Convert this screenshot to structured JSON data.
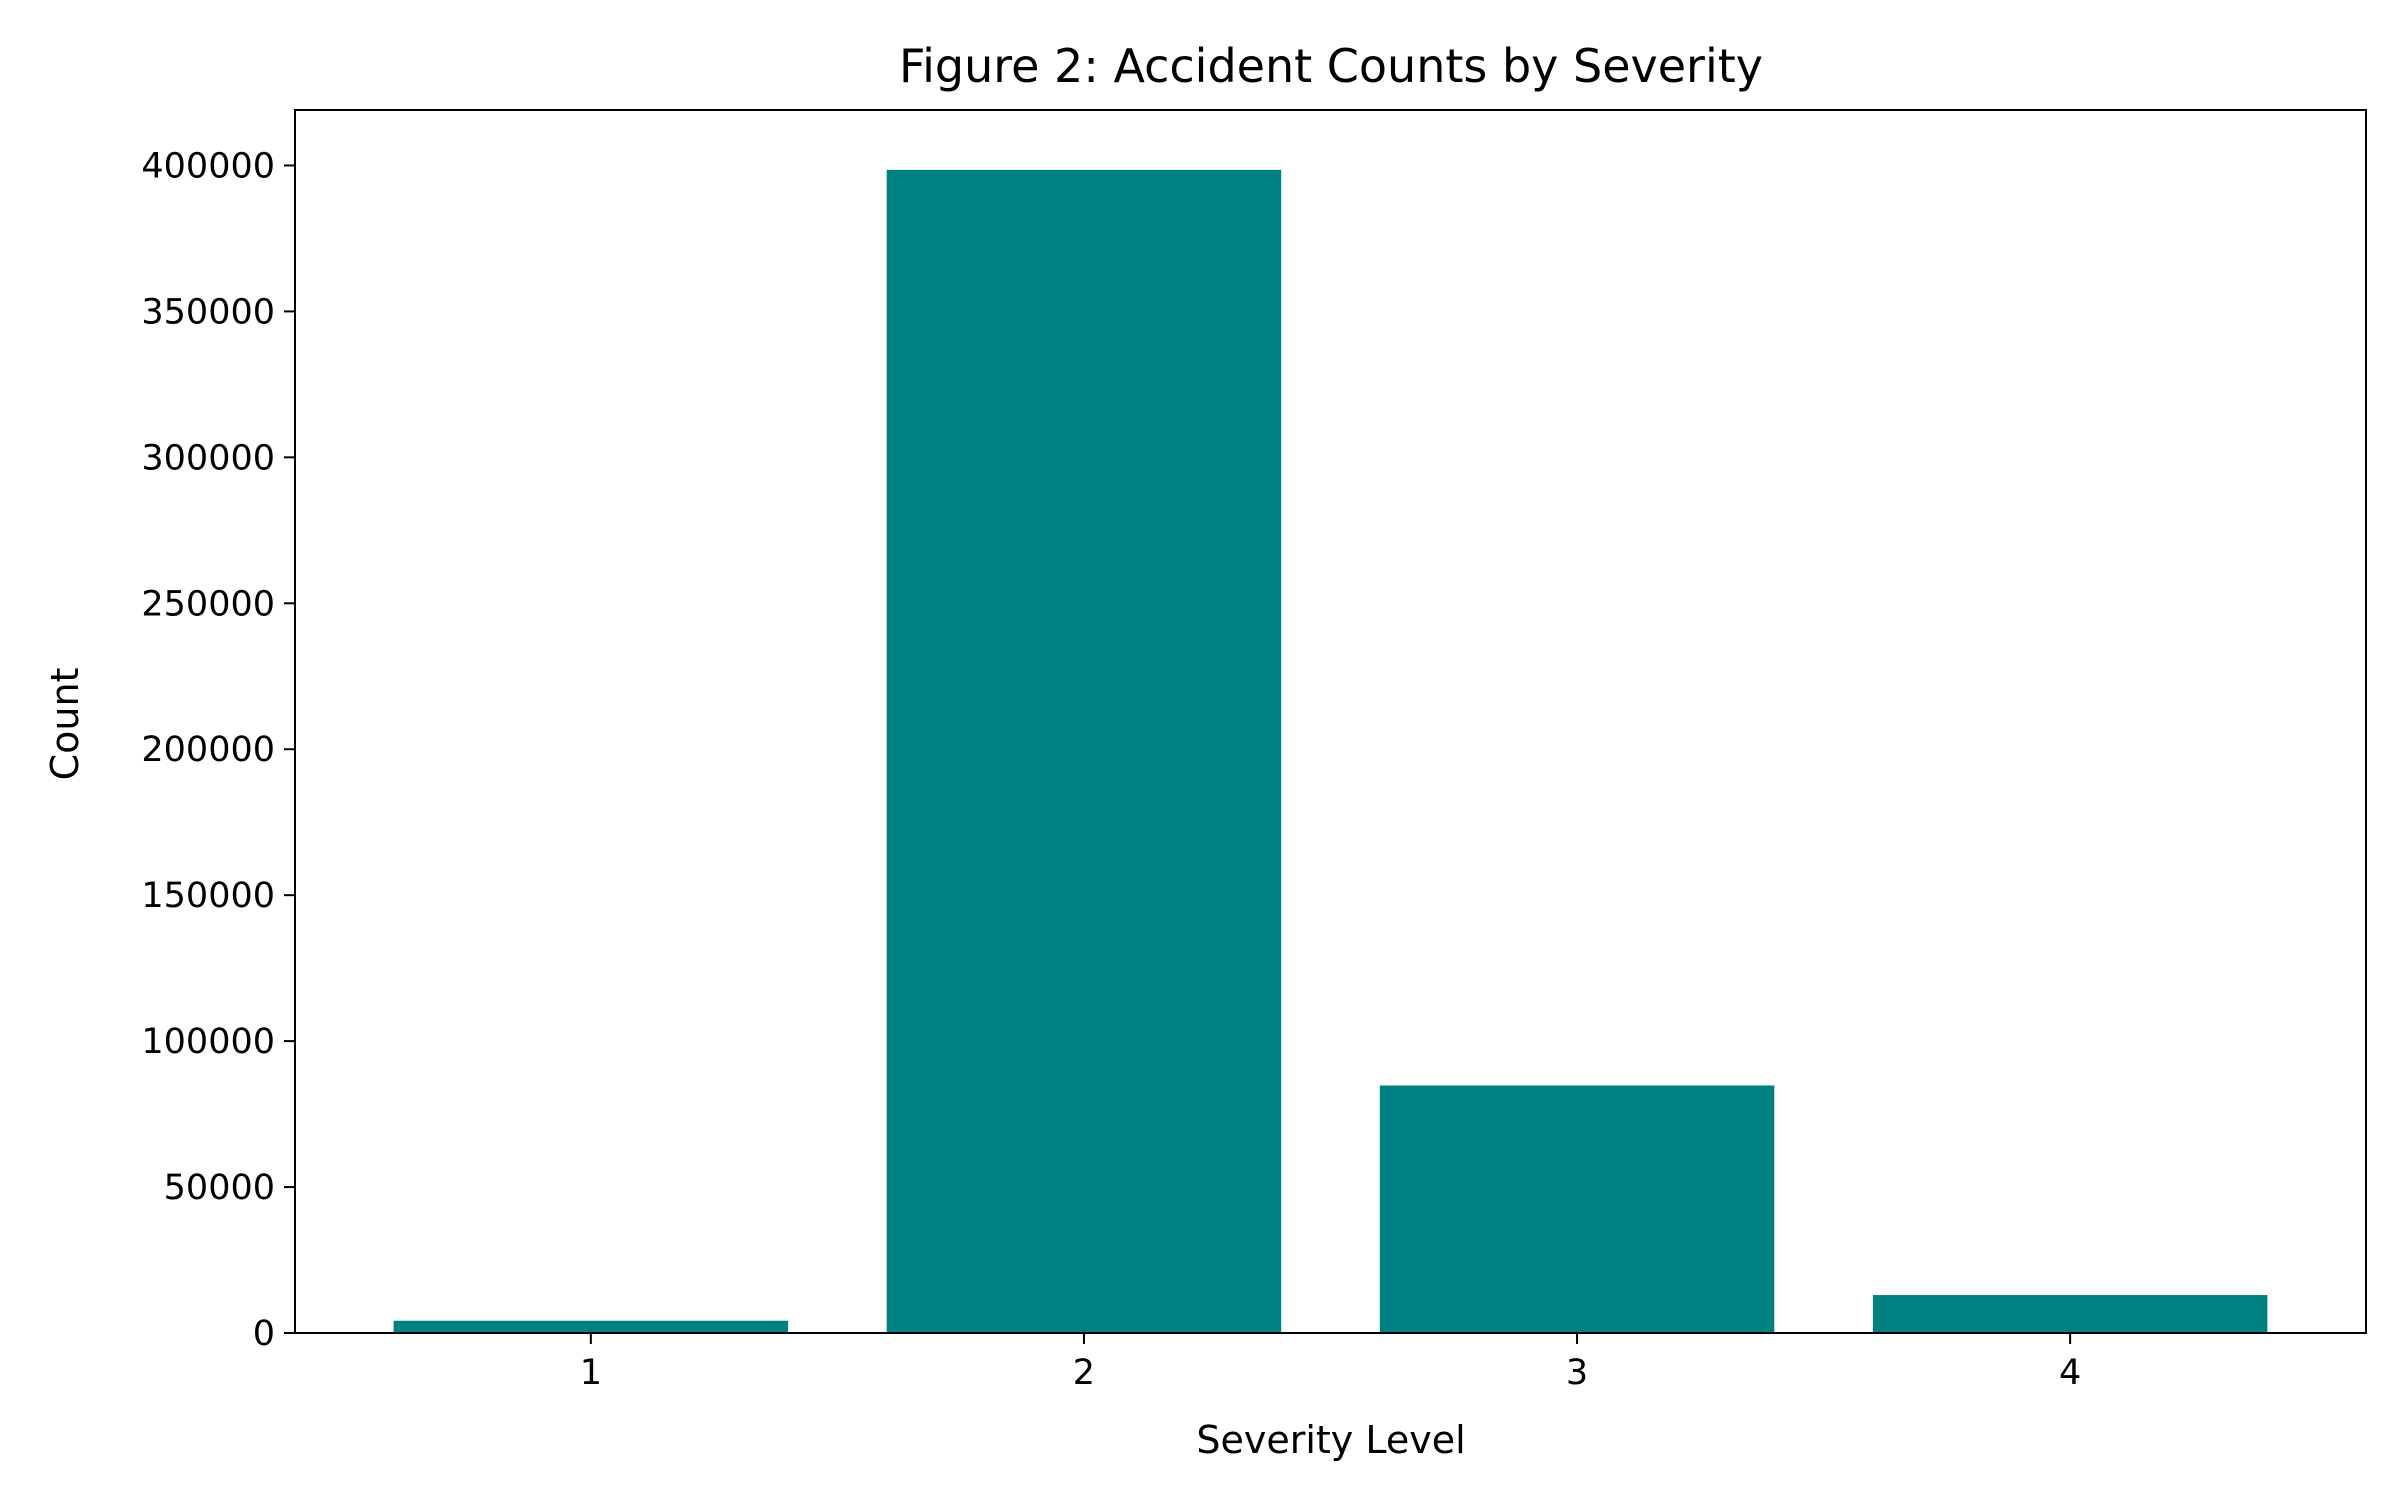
{
  "chart_data": {
    "type": "bar",
    "title": "Figure 2: Accident Counts by Severity",
    "xlabel": "Severity Level",
    "ylabel": "Count",
    "categories": [
      "1",
      "2",
      "3",
      "4"
    ],
    "values": [
      4200,
      398500,
      84800,
      13000
    ],
    "ylim": [
      0,
      419000
    ],
    "yticks": [
      0,
      50000,
      100000,
      150000,
      200000,
      250000,
      300000,
      350000,
      400000
    ],
    "grid": false,
    "legend": "none",
    "bar_color": "#008080"
  }
}
